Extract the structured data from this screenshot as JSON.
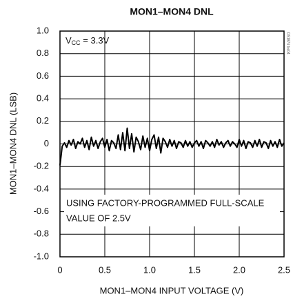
{
  "chart_data": {
    "type": "line",
    "title": "MON1–MON4 DNL",
    "xlabel": "MON1–MON4 INPUT VOLTAGE (V)",
    "ylabel": "MON1–MON4 DNL (LSB)",
    "annotation_vcc": {
      "base": "V",
      "sub": "CC",
      "rest": " = 3.3V"
    },
    "annotation_note": [
      "USING FACTORY-PROGRAMMED FULL-SCALE",
      "VALUE OF 2.5V"
    ],
    "watermark": "DS1874 toc04",
    "xlim": [
      0,
      2.5
    ],
    "ylim": [
      -1.0,
      1.0
    ],
    "xticks": [
      0,
      0.5,
      {
        "value": 1.0,
        "label": "1.0"
      },
      1.5,
      {
        "value": 2.0,
        "label": "2.0"
      },
      2.5
    ],
    "yticks": [
      {
        "value": 1.0,
        "label": "1.0"
      },
      0.8,
      0.6,
      0.4,
      0.2,
      0,
      -0.2,
      -0.4,
      -0.6,
      -0.8,
      {
        "value": -1.0,
        "label": "-1.0"
      }
    ],
    "grid": true,
    "x": [
      0,
      0.025,
      0.05,
      0.075,
      0.1,
      0.125,
      0.15,
      0.175,
      0.2,
      0.225,
      0.25,
      0.275,
      0.3,
      0.325,
      0.35,
      0.375,
      0.4,
      0.425,
      0.45,
      0.475,
      0.5,
      0.525,
      0.55,
      0.575,
      0.6,
      0.625,
      0.65,
      0.675,
      0.7,
      0.725,
      0.75,
      0.775,
      0.8,
      0.825,
      0.85,
      0.875,
      0.9,
      0.925,
      0.95,
      0.975,
      1.0,
      1.025,
      1.05,
      1.075,
      1.1,
      1.125,
      1.15,
      1.175,
      1.2,
      1.225,
      1.25,
      1.275,
      1.3,
      1.325,
      1.35,
      1.375,
      1.4,
      1.425,
      1.45,
      1.475,
      1.5,
      1.525,
      1.55,
      1.575,
      1.6,
      1.625,
      1.65,
      1.675,
      1.7,
      1.725,
      1.75,
      1.775,
      1.8,
      1.825,
      1.85,
      1.875,
      1.9,
      1.925,
      1.95,
      1.975,
      2.0,
      2.025,
      2.05,
      2.075,
      2.1,
      2.125,
      2.15,
      2.175,
      2.2,
      2.225,
      2.25,
      2.275,
      2.3,
      2.325,
      2.35,
      2.375,
      2.4,
      2.425,
      2.45,
      2.475,
      2.5
    ],
    "series": [
      {
        "color": "#000000",
        "values": [
          -0.19,
          -0.02,
          0.01,
          -0.03,
          0.03,
          -0.01,
          0.04,
          -0.04,
          0.02,
          0.0,
          0.05,
          -0.03,
          0.03,
          -0.05,
          0.06,
          -0.02,
          0.03,
          -0.04,
          0.02,
          0.05,
          -0.03,
          0.04,
          -0.06,
          0.03,
          0.01,
          -0.04,
          0.08,
          -0.05,
          0.1,
          -0.06,
          0.14,
          -0.04,
          0.09,
          -0.07,
          0.06,
          0.02,
          -0.05,
          0.07,
          -0.03,
          0.05,
          -0.06,
          0.04,
          0.08,
          -0.04,
          0.06,
          -0.08,
          0.05,
          0.02,
          -0.03,
          0.04,
          -0.02,
          0.03,
          -0.04,
          0.02,
          0.01,
          -0.03,
          0.03,
          -0.02,
          0.02,
          -0.03,
          0.01,
          0.03,
          -0.02,
          0.02,
          -0.04,
          0.03,
          0.01,
          -0.02,
          0.02,
          -0.03,
          0.04,
          -0.01,
          0.02,
          -0.03,
          0.01,
          0.03,
          -0.02,
          0.02,
          0.0,
          -0.03,
          0.04,
          -0.02,
          0.03,
          -0.04,
          0.02,
          0.01,
          -0.03,
          0.03,
          -0.02,
          0.04,
          -0.03,
          0.02,
          0.01,
          -0.04,
          0.03,
          -0.02,
          0.02,
          -0.03,
          0.04,
          -0.02,
          0.01
        ]
      }
    ]
  }
}
